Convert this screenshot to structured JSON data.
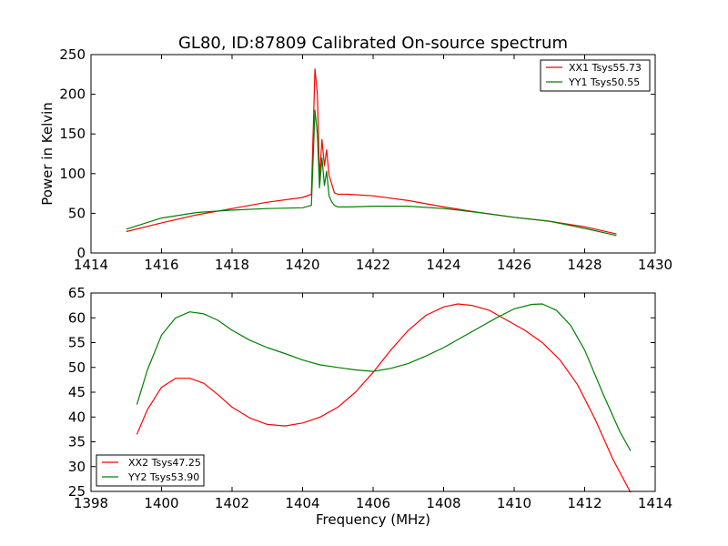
{
  "chart_data": [
    {
      "type": "line",
      "title": "GL80, ID:87809 Calibrated On-source spectrum",
      "xlabel": "",
      "ylabel": "Power in Kelvin",
      "xlim": [
        1414,
        1430
      ],
      "ylim": [
        0,
        250
      ],
      "xticks": [
        1414,
        1416,
        1418,
        1420,
        1422,
        1424,
        1426,
        1428,
        1430
      ],
      "yticks": [
        0,
        50,
        100,
        150,
        200,
        250
      ],
      "legend_position": "top-right",
      "series": [
        {
          "name": "XX1 Tsys55.73",
          "color": "#ff0000",
          "x": [
            1415.0,
            1416.0,
            1417.0,
            1418.0,
            1419.0,
            1420.0,
            1420.25,
            1420.35,
            1420.42,
            1420.48,
            1420.55,
            1420.62,
            1420.68,
            1420.75,
            1420.82,
            1420.9,
            1421.0,
            1421.3,
            1422.0,
            1423.0,
            1424.0,
            1425.0,
            1426.0,
            1427.0,
            1428.0,
            1428.9
          ],
          "y": [
            27,
            38,
            48,
            56,
            64,
            70,
            74,
            232,
            200,
            95,
            143,
            110,
            130,
            98,
            88,
            76,
            74,
            74,
            72,
            66,
            58,
            51,
            45,
            40,
            33,
            24
          ]
        },
        {
          "name": "YY1 Tsys50.55",
          "color": "#008000",
          "x": [
            1415.0,
            1416.0,
            1417.0,
            1418.0,
            1419.0,
            1420.0,
            1420.25,
            1420.35,
            1420.42,
            1420.48,
            1420.55,
            1420.62,
            1420.68,
            1420.75,
            1420.82,
            1420.9,
            1421.0,
            1421.3,
            1422.0,
            1423.0,
            1424.0,
            1425.0,
            1426.0,
            1427.0,
            1428.0,
            1428.9
          ],
          "y": [
            30,
            44,
            51,
            54,
            56,
            57,
            60,
            180,
            150,
            82,
            120,
            85,
            103,
            72,
            65,
            60,
            58,
            58,
            59,
            59,
            56,
            51,
            45,
            40,
            31,
            22
          ]
        }
      ]
    },
    {
      "type": "line",
      "title": "",
      "xlabel": "Frequency (MHz)",
      "ylabel": "",
      "xlim": [
        1398,
        1414
      ],
      "ylim": [
        25,
        65
      ],
      "xticks": [
        1398,
        1400,
        1402,
        1404,
        1406,
        1408,
        1410,
        1412,
        1414
      ],
      "yticks": [
        25,
        30,
        35,
        40,
        45,
        50,
        55,
        60,
        65
      ],
      "legend_position": "bottom-left",
      "series": [
        {
          "name": "XX2 Tsys47.25",
          "color": "#ff0000",
          "x": [
            1399.3,
            1399.6,
            1400.0,
            1400.4,
            1400.8,
            1401.2,
            1401.6,
            1402.0,
            1402.5,
            1403.0,
            1403.5,
            1404.0,
            1404.5,
            1405.0,
            1405.5,
            1406.0,
            1406.5,
            1407.0,
            1407.5,
            1408.0,
            1408.4,
            1408.8,
            1409.3,
            1409.8,
            1410.3,
            1410.8,
            1411.3,
            1411.8,
            1412.3,
            1412.8,
            1413.3
          ],
          "y": [
            36.5,
            41.5,
            46.0,
            47.8,
            47.8,
            46.8,
            44.5,
            42.0,
            39.8,
            38.5,
            38.2,
            38.8,
            40.0,
            42.0,
            45.0,
            49.0,
            53.5,
            57.5,
            60.5,
            62.2,
            62.8,
            62.5,
            61.5,
            59.5,
            57.5,
            55.0,
            51.5,
            46.5,
            39.5,
            31.5,
            24.8
          ]
        },
        {
          "name": "YY2 Tsys53.90",
          "color": "#008000",
          "x": [
            1399.3,
            1399.6,
            1400.0,
            1400.4,
            1400.8,
            1401.2,
            1401.6,
            1402.0,
            1402.5,
            1403.0,
            1403.5,
            1404.0,
            1404.5,
            1405.0,
            1405.5,
            1406.0,
            1406.5,
            1407.0,
            1407.5,
            1408.0,
            1408.5,
            1409.0,
            1409.5,
            1410.0,
            1410.5,
            1410.8,
            1411.2,
            1411.6,
            1412.0,
            1412.5,
            1413.0,
            1413.3
          ],
          "y": [
            42.5,
            49.5,
            56.5,
            60.0,
            61.2,
            60.8,
            59.5,
            57.5,
            55.5,
            54.0,
            52.8,
            51.5,
            50.5,
            50.0,
            49.5,
            49.2,
            49.8,
            50.8,
            52.3,
            54.0,
            56.0,
            58.0,
            60.0,
            61.8,
            62.7,
            62.8,
            61.5,
            58.5,
            53.5,
            45.0,
            37.0,
            33.2
          ]
        }
      ]
    }
  ]
}
